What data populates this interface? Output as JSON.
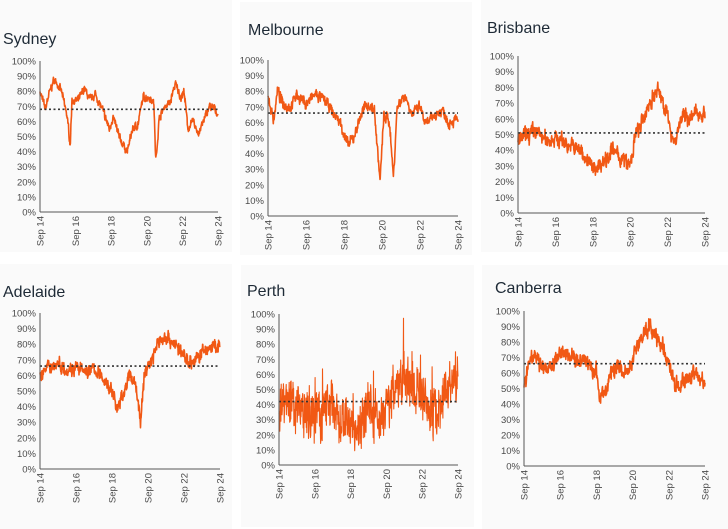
{
  "chart_data": [
    {
      "type": "line",
      "title": "Sydney",
      "x_ticks": [
        "Sep 14",
        "Sep 16",
        "Sep 18",
        "Sep 20",
        "Sep 22",
        "Sep 24"
      ],
      "y_ticks": [
        "0%",
        "10%",
        "20%",
        "30%",
        "40%",
        "50%",
        "60%",
        "70%",
        "80%",
        "90%",
        "100%"
      ],
      "ylim": [
        0,
        100
      ],
      "xlim": [
        0,
        10
      ],
      "average": 68,
      "series": [
        {
          "name": "Sydney",
          "x": [
            0,
            0.3,
            0.5,
            0.8,
            1.2,
            1.5,
            1.7,
            1.8,
            2.1,
            2.5,
            2.8,
            3.1,
            3.5,
            3.9,
            4.1,
            4.5,
            4.9,
            5.2,
            5.5,
            5.8,
            6.2,
            6.4,
            6.5,
            6.7,
            7.0,
            7.3,
            7.6,
            7.9,
            8.1,
            8.3,
            8.6,
            8.9,
            9.2,
            9.5,
            9.8,
            10
          ],
          "y": [
            80,
            68,
            78,
            88,
            80,
            65,
            45,
            75,
            73,
            82,
            74,
            78,
            68,
            55,
            63,
            48,
            40,
            55,
            58,
            76,
            76,
            72,
            33,
            62,
            70,
            72,
            85,
            76,
            80,
            55,
            60,
            52,
            60,
            70,
            68,
            65
          ]
        }
      ]
    },
    {
      "type": "line",
      "title": "Melbourne",
      "x_ticks": [
        "Sep 14",
        "Sep 16",
        "Sep 18",
        "Sep 20",
        "Sep 22",
        "Sep 24"
      ],
      "y_ticks": [
        "0%",
        "10%",
        "20%",
        "30%",
        "40%",
        "50%",
        "60%",
        "70%",
        "80%",
        "90%",
        "100%"
      ],
      "ylim": [
        0,
        100
      ],
      "xlim": [
        0,
        10
      ],
      "average": 66,
      "series": [
        {
          "name": "Melbourne",
          "x": [
            0,
            0.3,
            0.5,
            0.8,
            1.2,
            1.5,
            2,
            2.5,
            3,
            3.3,
            3.8,
            4.2,
            4.5,
            4.9,
            5.2,
            5.6,
            5.9,
            6.1,
            6.4,
            6.6,
            6.8,
            7.2,
            7.6,
            8,
            8.3,
            8.8,
            9.2,
            9.5,
            10
          ],
          "y": [
            75,
            62,
            80,
            72,
            70,
            78,
            72,
            78,
            74,
            68,
            60,
            45,
            50,
            65,
            72,
            68,
            22,
            65,
            60,
            25,
            70,
            78,
            65,
            70,
            58,
            65,
            68,
            60,
            62
          ]
        }
      ]
    },
    {
      "type": "line",
      "title": "Brisbane",
      "x_ticks": [
        "Sep 14",
        "Sep 16",
        "Sep 18",
        "Sep 20",
        "Sep 22",
        "Sep 24"
      ],
      "y_ticks": [
        "0%",
        "10%",
        "20%",
        "30%",
        "40%",
        "50%",
        "60%",
        "70%",
        "80%",
        "90%",
        "100%"
      ],
      "ylim": [
        0,
        100
      ],
      "xlim": [
        0,
        10
      ],
      "average": 51,
      "series": [
        {
          "name": "Brisbane",
          "x": [
            0,
            0.5,
            1,
            1.5,
            2,
            2.5,
            3,
            3.5,
            4,
            4.5,
            5,
            5.5,
            6,
            6.3,
            6.7,
            7,
            7.5,
            7.8,
            8.1,
            8.4,
            8.7,
            9,
            9.3,
            9.6,
            10
          ],
          "y": [
            45,
            50,
            52,
            46,
            48,
            45,
            42,
            38,
            28,
            32,
            40,
            35,
            30,
            50,
            58,
            70,
            78,
            70,
            55,
            45,
            60,
            62,
            60,
            65,
            62
          ]
        }
      ]
    },
    {
      "type": "line",
      "title": "Adelaide",
      "x_ticks": [
        "Sep 14",
        "Sep 16",
        "Sep 18",
        "Sep 20",
        "Sep 22",
        "Sep 24"
      ],
      "y_ticks": [
        "0%",
        "10%",
        "20%",
        "30%",
        "40%",
        "50%",
        "60%",
        "70%",
        "80%",
        "90%",
        "100%"
      ],
      "ylim": [
        0,
        100
      ],
      "xlim": [
        0,
        10
      ],
      "average": 66,
      "series": [
        {
          "name": "Adelaide",
          "x": [
            0,
            0.5,
            1,
            1.5,
            2,
            2.5,
            3,
            3.5,
            4,
            4.3,
            4.6,
            5,
            5.3,
            5.6,
            5.8,
            6.2,
            6.6,
            7,
            7.5,
            8,
            8.5,
            9,
            9.5,
            10
          ],
          "y": [
            60,
            65,
            68,
            64,
            65,
            62,
            64,
            58,
            50,
            38,
            48,
            60,
            55,
            30,
            62,
            70,
            82,
            85,
            80,
            72,
            68,
            75,
            78,
            78
          ]
        }
      ]
    },
    {
      "type": "line",
      "title": "Perth",
      "x_ticks": [
        "Sep 14",
        "Sep 16",
        "Sep 18",
        "Sep 20",
        "Sep 22",
        "Sep 24"
      ],
      "y_ticks": [
        "0%",
        "10%",
        "20%",
        "30%",
        "40%",
        "50%",
        "60%",
        "70%",
        "80%",
        "90%",
        "100%"
      ],
      "ylim": [
        0,
        100
      ],
      "xlim": [
        0,
        10
      ],
      "average": 42,
      "series": [
        {
          "name": "Perth",
          "x": [
            0,
            1,
            2,
            2.5,
            3,
            3.5,
            4,
            4.5,
            5,
            5.5,
            6,
            6.5,
            7,
            7.5,
            8,
            8.5,
            9,
            9.5,
            10
          ],
          "y": [
            38,
            38,
            32,
            36,
            42,
            30,
            25,
            25,
            38,
            30,
            40,
            50,
            58,
            52,
            48,
            35,
            40,
            58,
            60
          ]
        }
      ]
    },
    {
      "type": "line",
      "title": "Canberra",
      "x_ticks": [
        "Sep 14",
        "Sep 16",
        "Sep 18",
        "Sep 20",
        "Sep 22",
        "Sep 24"
      ],
      "y_ticks": [
        "0%",
        "10%",
        "20%",
        "30%",
        "40%",
        "50%",
        "60%",
        "70%",
        "80%",
        "90%",
        "100%"
      ],
      "ylim": [
        0,
        100
      ],
      "xlim": [
        0,
        10
      ],
      "average": 66,
      "series": [
        {
          "name": "Canberra",
          "x": [
            0,
            0.3,
            0.8,
            1.2,
            1.6,
            2,
            2.5,
            3,
            3.5,
            4,
            4.2,
            4.5,
            4.8,
            5.2,
            5.5,
            5.8,
            6.1,
            6.5,
            7,
            7.3,
            7.6,
            8,
            8.3,
            8.6,
            9,
            9.5,
            10
          ],
          "y": [
            50,
            70,
            68,
            62,
            66,
            72,
            70,
            68,
            66,
            60,
            45,
            48,
            60,
            65,
            62,
            60,
            75,
            85,
            90,
            82,
            80,
            65,
            55,
            52,
            58,
            58,
            55
          ]
        }
      ]
    }
  ],
  "colors": {
    "series": "#f04a00",
    "average": "#333333",
    "axis": "#555555",
    "panel": "#fafafa"
  }
}
